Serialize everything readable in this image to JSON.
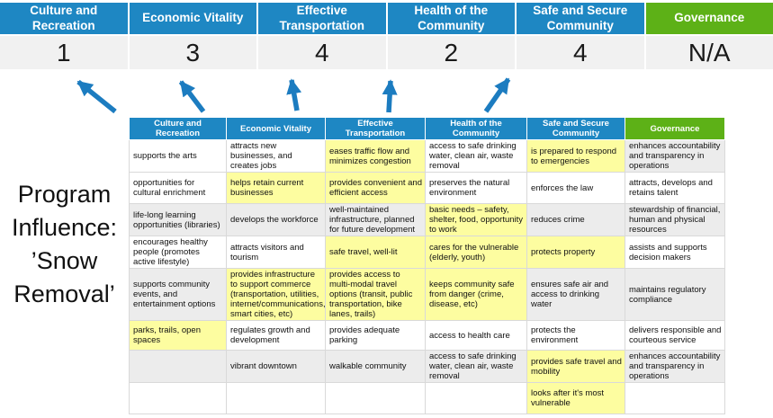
{
  "banner": {
    "columns": [
      {
        "label": "Culture and Recreation",
        "score": "1",
        "accent": "blue"
      },
      {
        "label": "Economic Vitality",
        "score": "3",
        "accent": "blue"
      },
      {
        "label": "Effective Transportation",
        "score": "4",
        "accent": "blue"
      },
      {
        "label": "Health of the Community",
        "score": "2",
        "accent": "blue"
      },
      {
        "label": "Safe and Secure Community",
        "score": "4",
        "accent": "blue"
      },
      {
        "label": "Governance",
        "score": "N/A",
        "accent": "green"
      }
    ]
  },
  "program_label": {
    "text": "Program Influence: ’Snow Removal’",
    "lines": [
      "Program",
      "Influence:",
      "’Snow",
      "Removal’"
    ]
  },
  "arrows": {
    "count": 5,
    "description": "blue arrows from matrix header up to influence scores"
  },
  "table": {
    "headers": [
      "Culture and Recreation",
      "Economic Vitality",
      "Effective Transportation",
      "Health of the Community",
      "Safe and Secure Community",
      "Governance"
    ],
    "rows": [
      {
        "cells": [
          {
            "text": "supports the arts",
            "bg": "white"
          },
          {
            "text": "attracts new businesses, and creates jobs",
            "bg": "white"
          },
          {
            "text": "eases traffic flow and minimizes congestion",
            "bg": "yellow"
          },
          {
            "text": "access to safe drinking water, clean air, waste removal",
            "bg": "white"
          },
          {
            "text": "is prepared to respond to emergencies",
            "bg": "yellow"
          },
          {
            "text": "enhances accountability and transparency in operations",
            "bg": "gray"
          }
        ]
      },
      {
        "cells": [
          {
            "text": "opportunities for cultural enrichment",
            "bg": "white"
          },
          {
            "text": "helps retain current businesses",
            "bg": "yellow"
          },
          {
            "text": "provides convenient and efficient access",
            "bg": "yellow"
          },
          {
            "text": "preserves the natural environment",
            "bg": "white"
          },
          {
            "text": "enforces the law",
            "bg": "white"
          },
          {
            "text": "attracts, develops and retains talent",
            "bg": "white"
          }
        ]
      },
      {
        "cells": [
          {
            "text": "life-long learning opportunities (libraries)",
            "bg": "gray"
          },
          {
            "text": "develops the workforce",
            "bg": "gray"
          },
          {
            "text": "well-maintained infrastructure, planned for future development",
            "bg": "gray"
          },
          {
            "text": "basic needs – safety, shelter, food, opportunity to work",
            "bg": "yellow"
          },
          {
            "text": "reduces crime",
            "bg": "gray"
          },
          {
            "text": "stewardship of financial, human and physical resources",
            "bg": "gray"
          }
        ]
      },
      {
        "cells": [
          {
            "text": "encourages healthy people (promotes active lifestyle)",
            "bg": "white"
          },
          {
            "text": "attracts visitors and tourism",
            "bg": "white"
          },
          {
            "text": "safe travel, well-lit",
            "bg": "yellow"
          },
          {
            "text": "cares for the vulnerable (elderly, youth)",
            "bg": "yellow"
          },
          {
            "text": "protects property",
            "bg": "yellow"
          },
          {
            "text": "assists and supports decision makers",
            "bg": "white"
          }
        ]
      },
      {
        "cells": [
          {
            "text": "supports community events, and entertainment options",
            "bg": "gray"
          },
          {
            "text": "provides infrastructure to support commerce (transportation, utilities, internet/communications, smart cities, etc)",
            "bg": "yellow"
          },
          {
            "text": "provides access to multi-modal travel options (transit, public transportation, bike lanes, trails)",
            "bg": "yellow"
          },
          {
            "text": "keeps community safe from danger (crime, disease, etc)",
            "bg": "yellow"
          },
          {
            "text": "ensures safe air and access to drinking water",
            "bg": "gray"
          },
          {
            "text": "maintains regulatory compliance",
            "bg": "gray"
          }
        ]
      },
      {
        "cells": [
          {
            "text": "parks, trails, open spaces",
            "bg": "yellow"
          },
          {
            "text": "regulates growth and development",
            "bg": "white"
          },
          {
            "text": "provides adequate parking",
            "bg": "white"
          },
          {
            "text": "access to health care",
            "bg": "white"
          },
          {
            "text": "protects the environment",
            "bg": "white"
          },
          {
            "text": "delivers responsible and courteous service",
            "bg": "white"
          }
        ]
      },
      {
        "cells": [
          {
            "text": "",
            "bg": "gray"
          },
          {
            "text": "vibrant downtown",
            "bg": "gray"
          },
          {
            "text": "walkable community",
            "bg": "gray"
          },
          {
            "text": "access to safe drinking water, clean air, waste removal",
            "bg": "gray"
          },
          {
            "text": "provides safe travel and mobility",
            "bg": "yellow"
          },
          {
            "text": "enhances accountability and transparency in operations",
            "bg": "gray"
          }
        ]
      },
      {
        "cells": [
          {
            "text": "",
            "bg": "white"
          },
          {
            "text": "",
            "bg": "white"
          },
          {
            "text": "",
            "bg": "white"
          },
          {
            "text": "",
            "bg": "white"
          },
          {
            "text": "looks after it's most vulnerable",
            "bg": "yellow"
          },
          {
            "text": "",
            "bg": "plain"
          }
        ]
      }
    ]
  },
  "colors": {
    "header_blue": "#1e87c3",
    "governance_green": "#5db117",
    "highlight_yellow": "#fdfda0",
    "row_gray": "#ececec",
    "numbers_bg": "#f1f1f1",
    "arrow_blue": "#1c7cc0",
    "border": "#d9d9d9"
  }
}
